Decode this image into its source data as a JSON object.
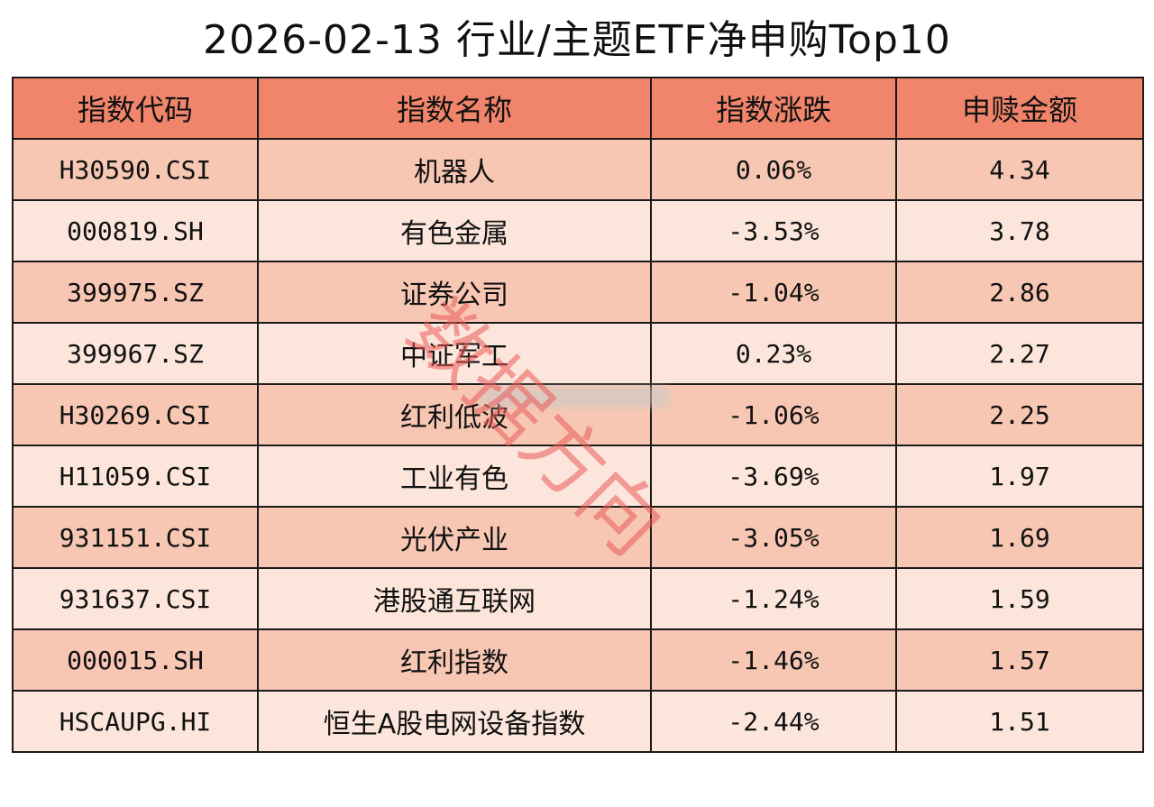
{
  "title": "2026-02-13 行业/主题ETF净申购Top10",
  "headers": [
    "指数代码",
    "指数名称",
    "指数涨跌",
    "申赎金额"
  ],
  "rows": [
    {
      "code": "H30590.CSI",
      "name": "机器人",
      "change": "0.06%",
      "amount": "4.34"
    },
    {
      "code": "000819.SH",
      "name": "有色金属",
      "change": "-3.53%",
      "amount": "3.78"
    },
    {
      "code": "399975.SZ",
      "name": "证券公司",
      "change": "-1.04%",
      "amount": "2.86"
    },
    {
      "code": "399967.SZ",
      "name": "中证军工",
      "change": "0.23%",
      "amount": "2.27"
    },
    {
      "code": "H30269.CSI",
      "name": "红利低波",
      "change": "-1.06%",
      "amount": "2.25"
    },
    {
      "code": "H11059.CSI",
      "name": "工业有色",
      "change": "-3.69%",
      "amount": "1.97"
    },
    {
      "code": "931151.CSI",
      "name": "光伏产业",
      "change": "-3.05%",
      "amount": "1.69"
    },
    {
      "code": "931637.CSI",
      "name": "港股通互联网",
      "change": "-1.24%",
      "amount": "1.59"
    },
    {
      "code": "000015.SH",
      "name": "红利指数",
      "change": "-1.46%",
      "amount": "1.57"
    },
    {
      "code": "HSCAUPG.HI",
      "name": "恒生A股电网设备指数",
      "change": "-2.44%",
      "amount": "1.51"
    }
  ],
  "watermark": "数据方向",
  "colors": {
    "header": "#f0856b",
    "row_odd": "#f7c7b3",
    "row_even": "#fce6dc",
    "watermark": "#eb5a5a"
  }
}
